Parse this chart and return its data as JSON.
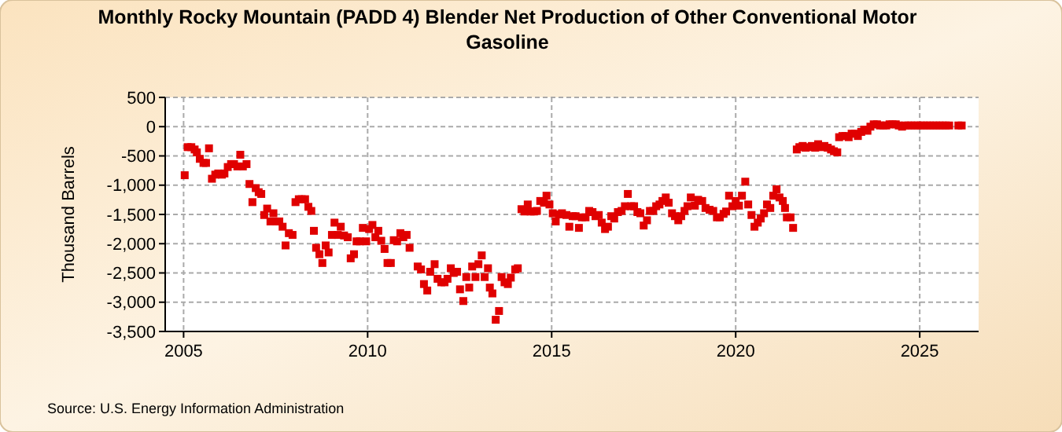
{
  "chart_data": {
    "type": "scatter",
    "title": "Monthly Rocky Mountain (PADD 4) Blender Net Production of Other Conventional Motor Gasoline",
    "ylabel": "Thousand Barrels",
    "annotations": [
      "Source: U.S. Energy Information Administration"
    ],
    "xlim": [
      2004.5,
      2026.6
    ],
    "xticks": [
      2005,
      2010,
      2015,
      2020,
      2025
    ],
    "ylim": [
      -3500,
      500
    ],
    "yticks": [
      500,
      0,
      -500,
      {
        "value": -1000,
        "label": "-1,000"
      },
      {
        "value": -1500,
        "label": "-1,500"
      },
      {
        "value": -2000,
        "label": "-2,000"
      },
      {
        "value": -2500,
        "label": "-2,500"
      },
      {
        "value": -3000,
        "label": "-3,000"
      },
      {
        "value": -3500,
        "label": "-3,500"
      }
    ],
    "grid": true,
    "marker": "square",
    "series": [
      {
        "color": "#e00000",
        "x": [
          2005.03,
          2005.11,
          2005.21,
          2005.3,
          2005.36,
          2005.44,
          2005.54,
          2005.61,
          2005.69,
          2005.77,
          2005.86,
          2005.94,
          2006.04,
          2006.11,
          2006.2,
          2006.29,
          2006.37,
          2006.46,
          2006.54,
          2006.61,
          2006.71,
          2006.79,
          2006.87,
          2006.96,
          2007.04,
          2007.11,
          2007.19,
          2007.27,
          2007.36,
          2007.44,
          2007.51,
          2007.6,
          2007.69,
          2007.77,
          2007.86,
          2007.96,
          2008.04,
          2008.13,
          2008.21,
          2008.3,
          2008.39,
          2008.47,
          2008.54,
          2008.6,
          2008.69,
          2008.77,
          2008.86,
          2008.94,
          2009.03,
          2009.1,
          2009.19,
          2009.27,
          2009.36,
          2009.46,
          2009.54,
          2009.63,
          2009.7,
          2009.79,
          2009.87,
          2009.96,
          2010.04,
          2010.13,
          2010.21,
          2010.29,
          2010.37,
          2010.46,
          2010.54,
          2010.63,
          2010.71,
          2010.8,
          2010.89,
          2010.97,
          2011.06,
          2011.14,
          2011.36,
          2011.45,
          2011.53,
          2011.62,
          2011.7,
          2011.82,
          2011.9,
          2012.0,
          2012.09,
          2012.17,
          2012.26,
          2012.34,
          2012.43,
          2012.51,
          2012.6,
          2012.68,
          2012.76,
          2012.84,
          2012.93,
          2013.01,
          2013.1,
          2013.18,
          2013.27,
          2013.32,
          2013.39,
          2013.48,
          2013.57,
          2013.64,
          2013.72,
          2013.81,
          2013.89,
          2014.01,
          2014.08,
          2014.18,
          2014.26,
          2014.35,
          2014.43,
          2014.52,
          2014.6,
          2014.69,
          2014.79,
          2014.86,
          2014.94,
          2015.03,
          2015.11,
          2015.2,
          2015.28,
          2015.4,
          2015.48,
          2015.57,
          2015.65,
          2015.74,
          2015.82,
          2015.92,
          2016.02,
          2016.11,
          2016.19,
          2016.28,
          2016.36,
          2016.45,
          2016.53,
          2016.62,
          2016.7,
          2016.8,
          2016.9,
          2016.99,
          2017.07,
          2017.16,
          2017.24,
          2017.33,
          2017.41,
          2017.5,
          2017.59,
          2017.67,
          2017.76,
          2017.84,
          2017.93,
          2018.01,
          2018.1,
          2018.18,
          2018.27,
          2018.35,
          2018.44,
          2018.52,
          2018.61,
          2018.69,
          2018.78,
          2018.89,
          2018.98,
          2019.09,
          2019.18,
          2019.29,
          2019.39,
          2019.49,
          2019.57,
          2019.67,
          2019.74,
          2019.82,
          2019.91,
          2020.0,
          2020.09,
          2020.17,
          2020.26,
          2020.34,
          2020.43,
          2020.51,
          2020.6,
          2020.68,
          2020.77,
          2020.85,
          2020.94,
          2021.02,
          2021.11,
          2021.19,
          2021.28,
          2021.34,
          2021.39,
          2021.49,
          2021.56,
          2021.66,
          2021.73,
          2021.82,
          2021.9,
          2021.99,
          2022.07,
          2022.16,
          2022.24,
          2022.33,
          2022.41,
          2022.5,
          2022.59,
          2022.67,
          2022.76,
          2022.81,
          2022.9,
          2022.98,
          2023.07,
          2023.15,
          2023.24,
          2023.32,
          2023.41,
          2023.49,
          2023.58,
          2023.66,
          2023.75,
          2023.84,
          2023.92,
          2024.01,
          2024.09,
          2024.18,
          2024.26,
          2024.35,
          2024.43,
          2024.52,
          2024.6,
          2024.69,
          2024.77,
          2024.86,
          2024.94,
          2025.03,
          2025.11,
          2025.2,
          2025.28,
          2025.37,
          2025.45,
          2025.54,
          2025.62,
          2025.71,
          2025.8,
          2026.05,
          2026.14
        ],
        "values": [
          -830,
          -350,
          -350,
          -390,
          -440,
          -550,
          -620,
          -620,
          -370,
          -890,
          -820,
          -800,
          -820,
          -800,
          -690,
          -640,
          -640,
          -680,
          -480,
          -680,
          -640,
          -980,
          -1290,
          -1050,
          -1120,
          -1150,
          -1510,
          -1400,
          -1620,
          -1480,
          -1620,
          -1620,
          -1710,
          -2030,
          -1820,
          -1850,
          -1290,
          -1240,
          -1240,
          -1240,
          -1370,
          -1440,
          -1780,
          -2070,
          -2180,
          -2330,
          -2030,
          -2150,
          -1850,
          -1640,
          -1850,
          -1710,
          -1860,
          -1890,
          -2250,
          -2180,
          -1960,
          -1960,
          -1730,
          -1960,
          -1750,
          -1680,
          -1890,
          -1780,
          -1950,
          -2090,
          -2330,
          -2330,
          -1940,
          -1960,
          -1820,
          -1890,
          -1850,
          -2070,
          -2390,
          -2440,
          -2690,
          -2800,
          -2480,
          -2350,
          -2600,
          -2660,
          -2660,
          -2600,
          -2420,
          -2500,
          -2480,
          -2780,
          -2980,
          -2570,
          -2750,
          -2390,
          -2570,
          -2350,
          -2200,
          -2570,
          -2420,
          -2750,
          -2850,
          -3300,
          -3150,
          -2570,
          -2660,
          -2690,
          -2580,
          -2440,
          -2420,
          -1410,
          -1450,
          -1330,
          -1450,
          -1450,
          -1440,
          -1270,
          -1300,
          -1180,
          -1330,
          -1480,
          -1620,
          -1500,
          -1480,
          -1510,
          -1710,
          -1530,
          -1530,
          -1730,
          -1550,
          -1550,
          -1440,
          -1460,
          -1530,
          -1510,
          -1640,
          -1750,
          -1710,
          -1530,
          -1570,
          -1460,
          -1440,
          -1360,
          -1150,
          -1360,
          -1360,
          -1460,
          -1480,
          -1690,
          -1600,
          -1440,
          -1440,
          -1360,
          -1330,
          -1270,
          -1210,
          -1300,
          -1480,
          -1530,
          -1600,
          -1530,
          -1440,
          -1360,
          -1210,
          -1350,
          -1250,
          -1270,
          -1390,
          -1420,
          -1440,
          -1550,
          -1550,
          -1490,
          -1450,
          -1180,
          -1360,
          -1270,
          -1350,
          -1180,
          -940,
          -1330,
          -1510,
          -1710,
          -1640,
          -1570,
          -1480,
          -1330,
          -1390,
          -1180,
          -1070,
          -1210,
          -1270,
          -1390,
          -1550,
          -1550,
          -1730,
          -390,
          -350,
          -330,
          -360,
          -350,
          -330,
          -360,
          -300,
          -350,
          -330,
          -360,
          -390,
          -420,
          -440,
          -180,
          -160,
          -160,
          -180,
          -120,
          -120,
          -160,
          -90,
          -50,
          -70,
          0,
          40,
          40,
          20,
          20,
          20,
          40,
          40,
          40,
          20,
          0,
          20,
          20,
          20,
          20,
          20,
          20,
          20,
          20,
          20,
          20,
          20,
          20,
          20,
          20,
          20,
          20,
          20
        ]
      }
    ]
  }
}
